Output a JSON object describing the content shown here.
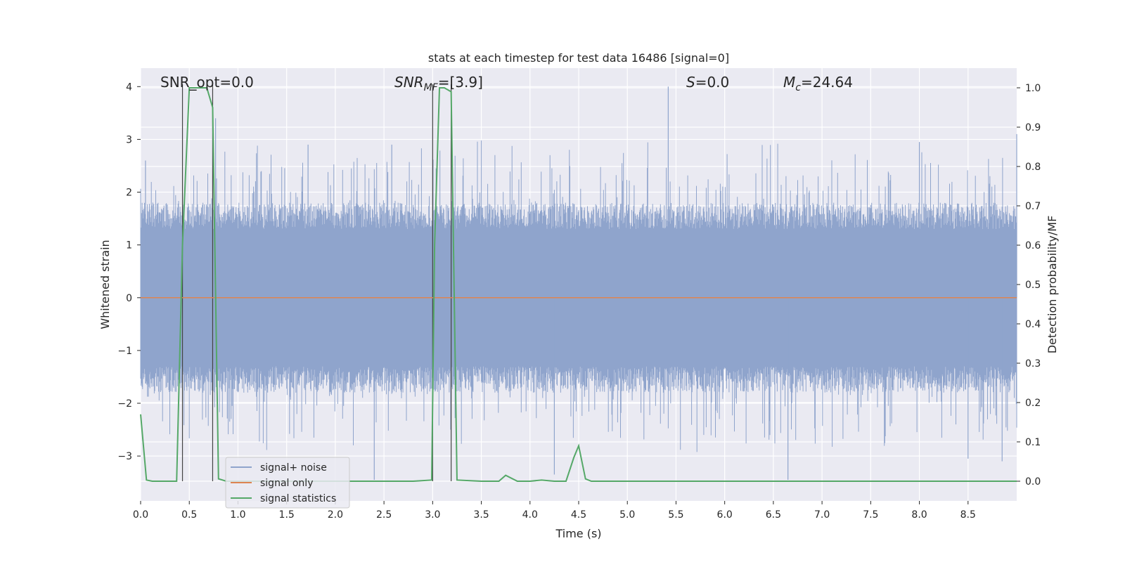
{
  "chart_data": {
    "type": "line",
    "title": "stats at each timestep for test data 16486 [signal=0]",
    "xlabel": "Time (s)",
    "ylabel": "Whitened strain",
    "y2label": "Detection probability/MF",
    "xlim": [
      0.0,
      9.0
    ],
    "ylim": [
      -3.85,
      4.35
    ],
    "y2lim": [
      -0.05,
      1.05
    ],
    "x_ticks": [
      0.0,
      0.5,
      1.0,
      1.5,
      2.0,
      2.5,
      3.0,
      3.5,
      4.0,
      4.5,
      5.0,
      5.5,
      6.0,
      6.5,
      7.0,
      7.5,
      8.0,
      8.5
    ],
    "x_tick_labels": [
      "0.0",
      "0.5",
      "1.0",
      "1.5",
      "2.0",
      "2.5",
      "3.0",
      "3.5",
      "4.0",
      "4.5",
      "5.0",
      "5.5",
      "6.0",
      "6.5",
      "7.0",
      "7.5",
      "8.0",
      "8.5"
    ],
    "y_ticks": [
      4,
      3,
      2,
      1,
      0,
      -1,
      -2,
      -3
    ],
    "y_tick_labels": [
      "4",
      "3",
      "2",
      "1",
      "0",
      "−1",
      "−2",
      "−3"
    ],
    "y2_ticks": [
      1.0,
      0.9,
      0.8,
      0.7,
      0.6,
      0.5,
      0.4,
      0.3,
      0.2,
      0.1,
      0.0
    ],
    "y2_tick_labels": [
      "1.0",
      "0.9",
      "0.8",
      "0.7",
      "0.6",
      "0.5",
      "0.4",
      "0.3",
      "0.2",
      "0.1",
      "0.0"
    ],
    "grid": true,
    "legend_position": "lower-left",
    "annotations": {
      "snr_opt": "SNR_opt=0.0",
      "snr_mf_base": "SNR",
      "snr_mf_sub": "MF",
      "snr_mf_value": "=[3.9]",
      "s_base": "S",
      "s_value": "=0.0",
      "mc_base": "M",
      "mc_sub": "c",
      "mc_value": "=24.64"
    },
    "markers_x": [
      0.43,
      0.74,
      3.0,
      3.19
    ],
    "series": [
      {
        "name": "signal+ noise",
        "color": "#8fa4cc",
        "axis": "left",
        "kind": "noise",
        "x_range": [
          0.0,
          9.0
        ],
        "typical_range": [
          -1.3,
          1.3
        ],
        "peak_values": [
          {
            "x": 0.05,
            "y": 2.6
          },
          {
            "x": 0.77,
            "y": 3.4
          },
          {
            "x": 1.72,
            "y": 2.9
          },
          {
            "x": 2.58,
            "y": 2.9
          },
          {
            "x": 5.42,
            "y": 4.0
          },
          {
            "x": 8.0,
            "y": 2.95
          },
          {
            "x": 9.0,
            "y": 3.1
          },
          {
            "x": 2.4,
            "y": -3.45
          },
          {
            "x": 6.65,
            "y": -3.45
          },
          {
            "x": 4.25,
            "y": -3.35
          },
          {
            "x": 8.5,
            "y": -3.05
          },
          {
            "x": 8.85,
            "y": -3.1
          }
        ]
      },
      {
        "name": "signal only",
        "color": "#dd8452",
        "axis": "left",
        "x": [
          0.0,
          9.0
        ],
        "values": [
          0.0,
          0.0
        ]
      },
      {
        "name": "signal statistics",
        "color": "#55a868",
        "axis": "right",
        "x": [
          0.0,
          0.06,
          0.12,
          0.2,
          0.3,
          0.37,
          0.43,
          0.5,
          0.55,
          0.62,
          0.68,
          0.74,
          0.8,
          0.88,
          1.0,
          2.8,
          2.99,
          3.02,
          3.07,
          3.12,
          3.19,
          3.25,
          3.5,
          3.68,
          3.75,
          3.87,
          4.0,
          4.12,
          4.25,
          4.37,
          4.45,
          4.5,
          4.57,
          4.63,
          5.0,
          9.0
        ],
        "values": [
          0.17,
          0.003,
          0.0,
          0.0,
          0.0,
          0.0,
          0.6,
          1.0,
          1.0,
          1.0,
          1.0,
          0.95,
          0.006,
          0.0,
          0.0,
          0.0,
          0.003,
          0.6,
          1.0,
          1.0,
          0.99,
          0.003,
          0.0,
          0.0,
          0.015,
          0.0,
          0.0,
          0.003,
          0.0,
          0.0,
          0.06,
          0.09,
          0.006,
          0.0,
          0.0,
          0.0
        ]
      }
    ]
  }
}
